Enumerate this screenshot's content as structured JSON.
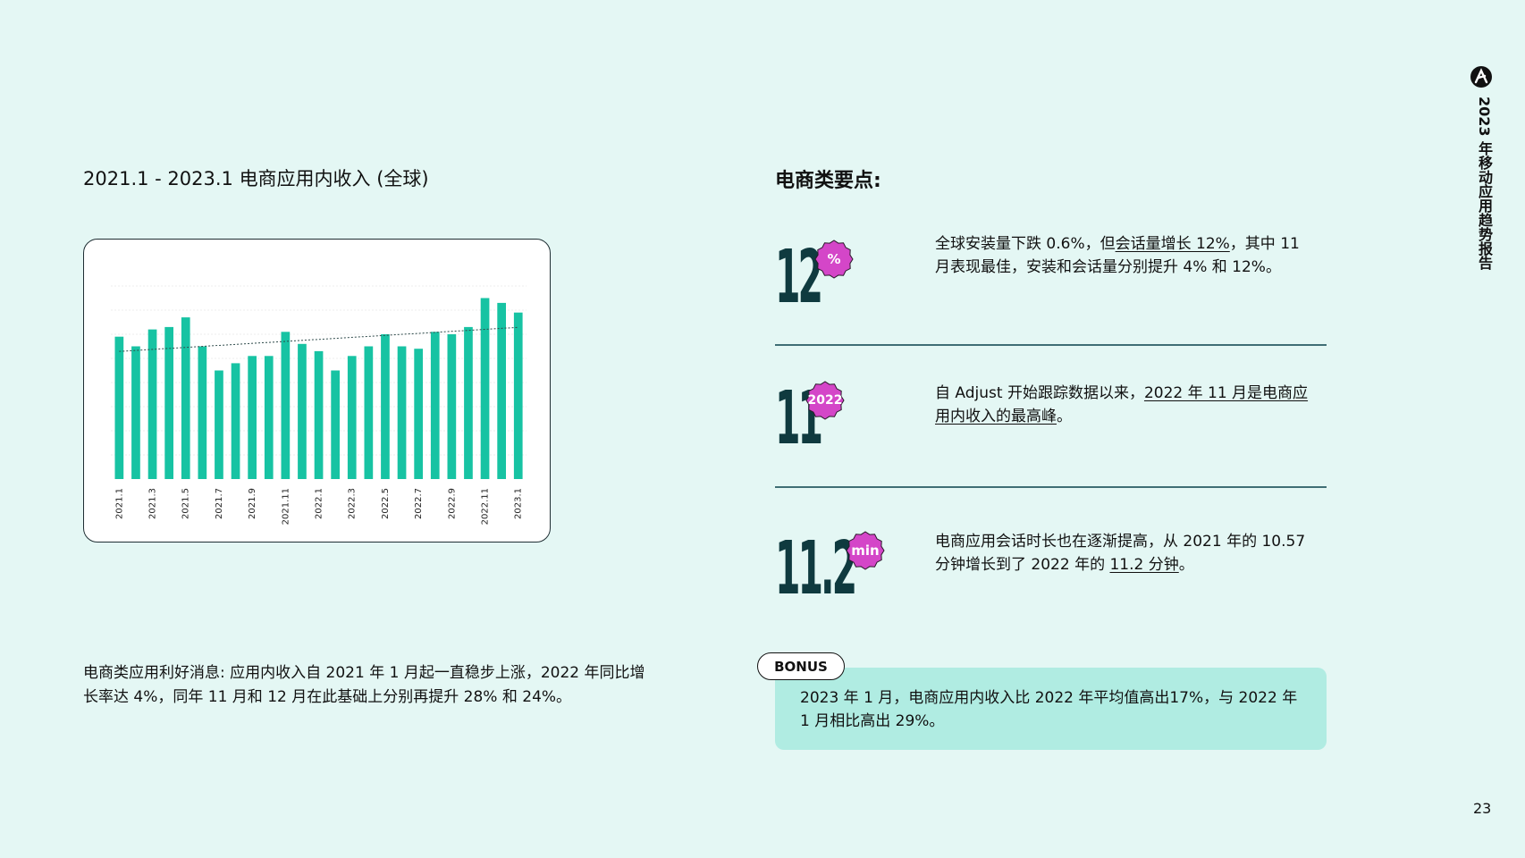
{
  "chart_title": "2021.1 - 2023.1 电商应用内收入 (全球)",
  "chart_data": {
    "type": "bar",
    "title": "2021.1 - 2023.1 电商应用内收入 (全球)",
    "x_tick_labels": [
      "2021.1",
      "2021.3",
      "2021.5",
      "2021.7",
      "2021.9",
      "2021.11",
      "2022.1",
      "2022.3",
      "2022.5",
      "2022.7",
      "2022.9",
      "2022.11",
      "2023.1"
    ],
    "categories": [
      "2021.1",
      "2021.2",
      "2021.3",
      "2021.4",
      "2021.5",
      "2021.6",
      "2021.7",
      "2021.8",
      "2021.9",
      "2021.10",
      "2021.11",
      "2021.12",
      "2022.1",
      "2022.2",
      "2022.3",
      "2022.4",
      "2022.5",
      "2022.6",
      "2022.7",
      "2022.8",
      "2022.9",
      "2022.10",
      "2022.11",
      "2022.12",
      "2023.1"
    ],
    "values": [
      59,
      55,
      62,
      63,
      67,
      55,
      45,
      48,
      51,
      51,
      61,
      56,
      53,
      45,
      51,
      55,
      60,
      55,
      54,
      61,
      60,
      63,
      75,
      73,
      69
    ],
    "ylim": [
      0,
      90
    ],
    "trendline": true,
    "grid": true,
    "y_axis_labels_shown": false,
    "bar_color": "#17c3a3"
  },
  "left_description": "电商类应用利好消息: 应用内收入自 2021 年 1 月起一直稳步上涨，2022 年同比增长率达 4%，同年 11 月和 12 月在此基础上分别再提升 28% 和 24%。",
  "key_points_title": "电商类要点:",
  "stats": [
    {
      "big": "12",
      "badge": "%",
      "text_parts": [
        "全球安装量下跌 0.6%，但",
        "会话量增长 12%",
        "，其中 11 月表现最佳，安装和会话量分别提升 4% 和 12%。"
      ]
    },
    {
      "big": "11",
      "badge": "2022",
      "text_parts": [
        "自 Adjust 开始跟踪数据以来，",
        "2022 年 11 月是电商应用内收入的最高峰",
        "。"
      ]
    },
    {
      "big": "11.2",
      "badge": "min",
      "text_parts": [
        "电商应用会话时长也在逐渐提高，从 2021 年的 10.57 分钟增长到了 2022 年的 ",
        "11.2 分钟",
        "。"
      ]
    }
  ],
  "bonus": {
    "tag": "BONUS",
    "text": "2023 年 1 月，电商应用内收入比 2022 年平均值高出17%，与 2022 年 1 月相比高出 29%。"
  },
  "side_title": "2023 年移动应用趋势报告",
  "page_number": "23",
  "colors": {
    "background": "#e4f7f4",
    "bar": "#17c3a3",
    "badge": "#d446c8",
    "big_number": "#0f3a3f",
    "bonus_box": "#b0ece2"
  }
}
